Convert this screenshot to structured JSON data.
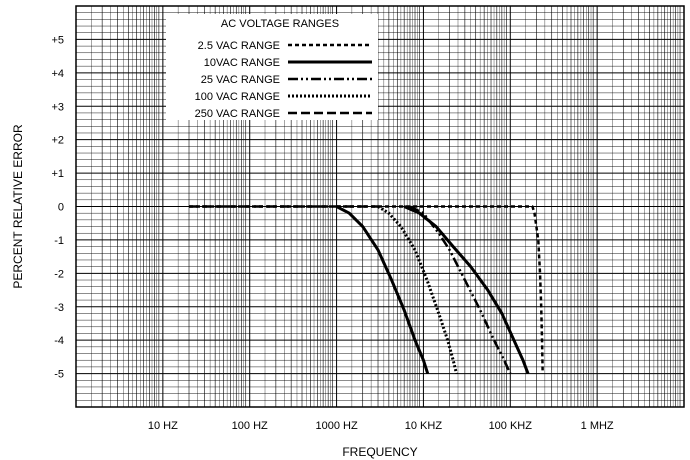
{
  "chart_data": {
    "type": "line",
    "title": "",
    "xlabel": "FREQUENCY",
    "ylabel": "PERCENT RELATIVE ERROR",
    "x_scale": "log",
    "xlim": [
      1,
      10000000
    ],
    "ylim": [
      -6,
      6
    ],
    "x_ticks": [
      {
        "value": 10,
        "label": "10 HZ"
      },
      {
        "value": 100,
        "label": "100 HZ"
      },
      {
        "value": 1000,
        "label": "1000 HZ"
      },
      {
        "value": 10000,
        "label": "10 KHZ"
      },
      {
        "value": 100000,
        "label": "100 KHZ"
      },
      {
        "value": 1000000,
        "label": "1 MHZ"
      }
    ],
    "y_ticks": [
      {
        "value": 5,
        "label": "+5"
      },
      {
        "value": 4,
        "label": "+4"
      },
      {
        "value": 3,
        "label": "+3"
      },
      {
        "value": 2,
        "label": "+2"
      },
      {
        "value": 1,
        "label": "+1"
      },
      {
        "value": 0,
        "label": "0"
      },
      {
        "value": -1,
        "label": "-1"
      },
      {
        "value": -2,
        "label": "-2"
      },
      {
        "value": -3,
        "label": "-3"
      },
      {
        "value": -4,
        "label": "-4"
      },
      {
        "value": -5,
        "label": "-5"
      }
    ],
    "grid": true,
    "legend": {
      "title": "AC VOLTAGE RANGES",
      "position": "top-center"
    },
    "series": [
      {
        "name": "2.5 VAC RANGE",
        "dash": "short-dash",
        "points": [
          [
            20,
            0
          ],
          [
            180000,
            0
          ],
          [
            190000,
            -0.2
          ],
          [
            210000,
            -1
          ],
          [
            220000,
            -2
          ],
          [
            227000,
            -3
          ],
          [
            232000,
            -4
          ],
          [
            236000,
            -5
          ]
        ]
      },
      {
        "name": "10VAC RANGE",
        "dash": "solid",
        "points": [
          [
            1000,
            0
          ],
          [
            1400,
            -0.2
          ],
          [
            2000,
            -0.6
          ],
          [
            3000,
            -1.3
          ],
          [
            4300,
            -2.2
          ],
          [
            6000,
            -3.1
          ],
          [
            8000,
            -4
          ],
          [
            10000,
            -4.6
          ],
          [
            11200,
            -5
          ]
        ]
      },
      {
        "name": "25 VAC RANGE",
        "dash": "dash-dot-dot",
        "points": [
          [
            7000,
            0
          ],
          [
            10000,
            -0.2
          ],
          [
            15000,
            -0.8
          ],
          [
            20000,
            -1.3
          ],
          [
            30000,
            -2.2
          ],
          [
            45000,
            -3.1
          ],
          [
            65000,
            -4
          ],
          [
            85000,
            -4.6
          ],
          [
            100000,
            -5
          ]
        ]
      },
      {
        "name": "100 VAC RANGE",
        "dash": "dotted",
        "points": [
          [
            3000,
            0
          ],
          [
            4000,
            -0.2
          ],
          [
            5500,
            -0.6
          ],
          [
            8000,
            -1.3
          ],
          [
            11000,
            -2.2
          ],
          [
            15000,
            -3.2
          ],
          [
            19000,
            -4
          ],
          [
            22000,
            -4.6
          ],
          [
            24000,
            -5
          ]
        ]
      },
      {
        "name": "250 VAC RANGE",
        "dash": "long-dash",
        "points": [
          [
            20,
            0
          ],
          [
            3000,
            0
          ]
        ]
      },
      {
        "name": "",
        "dash": "solid",
        "points": [
          [
            6000,
            0
          ],
          [
            9000,
            -0.2
          ],
          [
            14000,
            -0.6
          ],
          [
            22000,
            -1.2
          ],
          [
            35000,
            -1.8
          ],
          [
            55000,
            -2.5
          ],
          [
            80000,
            -3.2
          ],
          [
            110000,
            -4
          ],
          [
            140000,
            -4.6
          ],
          [
            160000,
            -5
          ]
        ]
      }
    ]
  }
}
